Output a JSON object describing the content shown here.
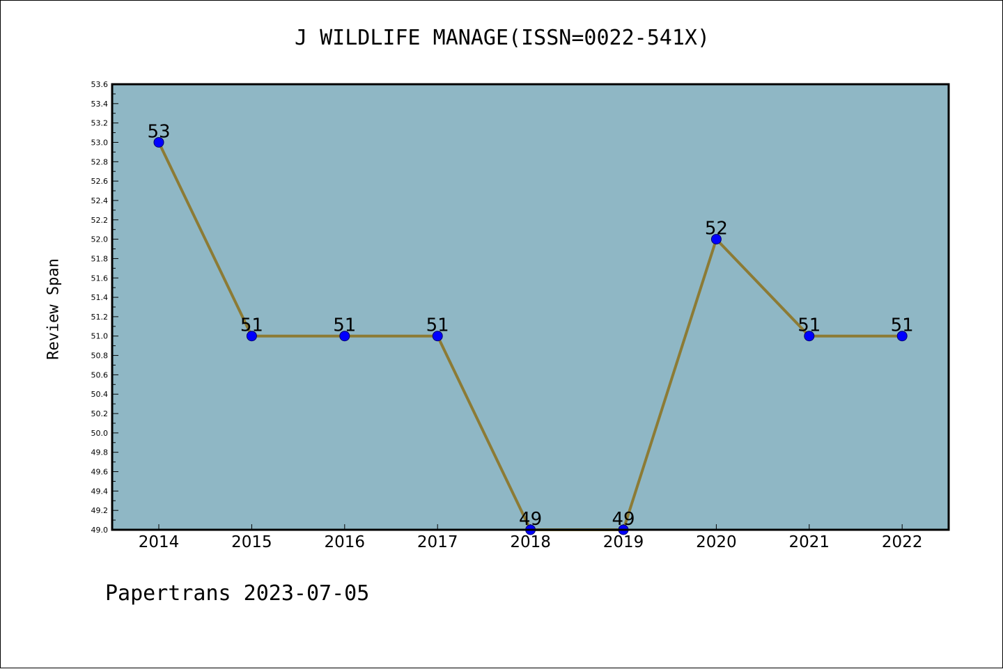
{
  "chart_data": {
    "type": "line",
    "title": "J WILDLIFE MANAGE(ISSN=0022-541X)",
    "xlabel": "",
    "ylabel": "Review Span",
    "categories": [
      "2014",
      "2015",
      "2016",
      "2017",
      "2018",
      "2019",
      "2020",
      "2021",
      "2022"
    ],
    "values": [
      53,
      51,
      51,
      51,
      49,
      49,
      52,
      51,
      51
    ],
    "data_labels": [
      "53",
      "51",
      "51",
      "51",
      "49",
      "49",
      "52",
      "51",
      "51"
    ],
    "ylim": [
      49.0,
      53.6
    ],
    "yticks": [
      "49.0",
      "49.2",
      "49.4",
      "49.6",
      "49.8",
      "50.0",
      "50.2",
      "50.4",
      "50.6",
      "50.8",
      "51.0",
      "51.2",
      "51.4",
      "51.6",
      "51.8",
      "52.0",
      "52.2",
      "52.4",
      "52.6",
      "52.8",
      "53.0",
      "53.2",
      "53.4",
      "53.6"
    ],
    "grid": false,
    "colors": {
      "plot_background": "#8fb7c5",
      "line": "#8c7b35",
      "marker": "#0000ff"
    }
  },
  "footer": "Papertrans 2023-07-05"
}
